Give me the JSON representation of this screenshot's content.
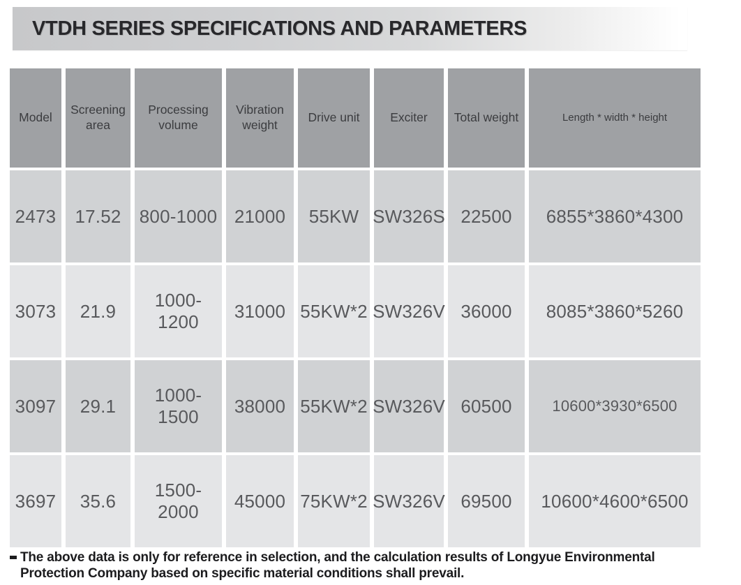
{
  "title": "VTDH SERIES SPECIFICATIONS AND PARAMETERS",
  "table": {
    "columns": [
      "Model",
      "Screening area",
      "Processing volume",
      "Vibration weight",
      "Drive unit",
      "Exciter",
      "Total weight",
      "Length * width * height"
    ],
    "rows": [
      [
        "2473",
        "17.52",
        "800-1000",
        "21000",
        "55KW",
        "SW326S",
        "22500",
        "6855*3860*4300"
      ],
      [
        "3073",
        "21.9",
        "1000-1200",
        "31000",
        "55KW*2",
        "SW326V",
        "36000",
        "8085*3860*5260"
      ],
      [
        "3097",
        "29.1",
        "1000-1500",
        "38000",
        "55KW*2",
        "SW326V",
        "60500",
        "10600*3930*6500"
      ],
      [
        "3697",
        "35.6",
        "1500-2000",
        "45000",
        "75KW*2",
        "SW326V",
        "69500",
        "10600*4600*6500"
      ]
    ]
  },
  "footnote": "The above data is only for reference in selection, and the calculation results of Longyue Environmental Protection Company based on specific material conditions shall prevail.",
  "colors": {
    "header_bg": "#9fa1a4",
    "row_odd_bg": "#d0d2d4",
    "row_even_bg": "#e4e5e7",
    "title_text": "#28282b",
    "cell_text": "#58595c",
    "note_text": "#1c1c1e"
  }
}
